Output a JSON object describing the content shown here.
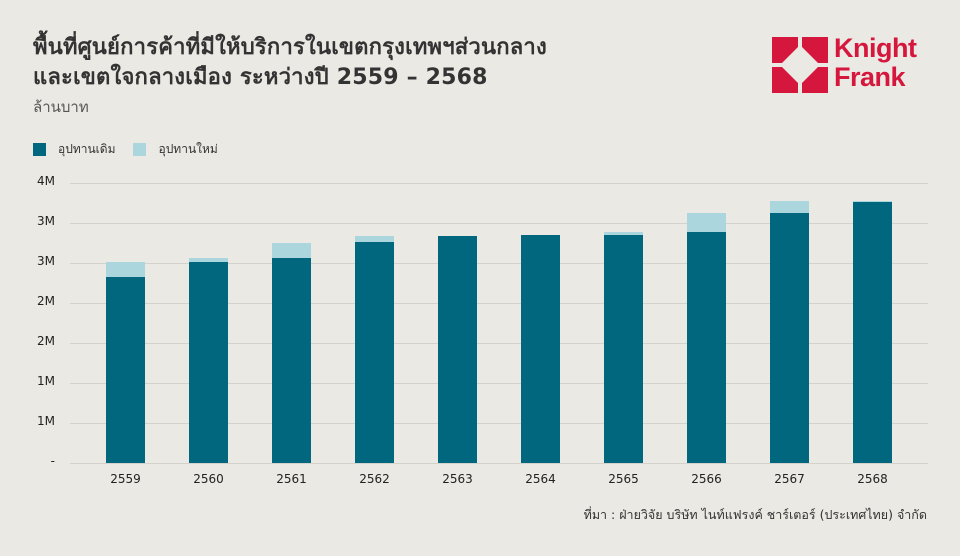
{
  "header": {
    "title_line1": "พื้นที่ศูนย์การค้าที่มีให้บริการในเขตกรุงเทพฯส่วนกลาง",
    "title_line2": "และเขตใจกลางเมือง ระหว่างปี 2559 – 2568",
    "unit": "ล้านบาท"
  },
  "logo": {
    "line1": "Knight",
    "line2": "Frank",
    "color": "#d6173d"
  },
  "legend": [
    {
      "label": "อุปทานเดิม",
      "color": "#00677f"
    },
    {
      "label": "อุปทานใหม่",
      "color": "#acd6dd"
    }
  ],
  "source": "ที่มา : ฝ่ายวิจัย บริษัท ไนท์แฟรงค์ ชาร์เตอร์ (ประเทศไทย) จำกัด",
  "chart_data": {
    "type": "bar",
    "stacked": true,
    "title": "พื้นที่ศูนย์การค้าที่มีให้บริการในเขตกรุงเทพฯส่วนกลางและเขตใจกลางเมือง ระหว่างปี 2559 – 2568",
    "subtitle": "ล้านบาท",
    "xlabel": "",
    "ylabel": "ล้านบาท",
    "categories": [
      "2559",
      "2560",
      "2561",
      "2562",
      "2563",
      "2564",
      "2565",
      "2566",
      "2567",
      "2568"
    ],
    "series": [
      {
        "name": "อุปทานเดิม",
        "color": "#00677f",
        "values": [
          2.33,
          2.51,
          2.56,
          2.76,
          2.84,
          2.85,
          2.85,
          2.89,
          3.13,
          3.26
        ]
      },
      {
        "name": "อุปทานใหม่",
        "color": "#acd6dd",
        "values": [
          0.18,
          0.05,
          0.19,
          0.08,
          0.0,
          0.0,
          0.04,
          0.24,
          0.15,
          0.02
        ]
      }
    ],
    "yticks": [
      {
        "value": 0,
        "label": "-"
      },
      {
        "value": 0.5,
        "label": "1M"
      },
      {
        "value": 1.0,
        "label": "1M"
      },
      {
        "value": 1.5,
        "label": "2M"
      },
      {
        "value": 2.0,
        "label": "2M"
      },
      {
        "value": 2.5,
        "label": "3M"
      },
      {
        "value": 3.0,
        "label": "3M"
      },
      {
        "value": 3.5,
        "label": "4M"
      }
    ],
    "ylim": [
      0,
      3.5
    ],
    "grid": true,
    "legend_position": "top-left"
  }
}
